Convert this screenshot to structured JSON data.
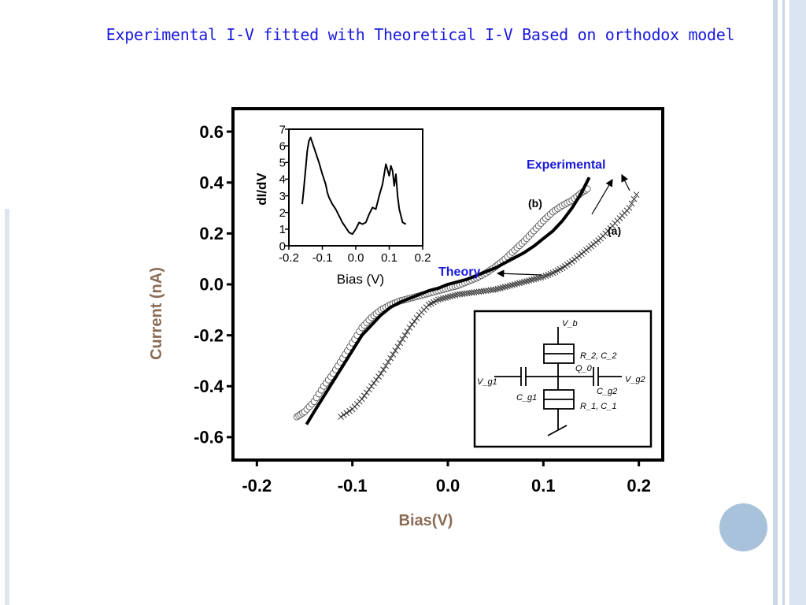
{
  "slide": {
    "title": "Experimental I-V fitted with Theoretical I-V Based on orthodox model",
    "colors": {
      "title": "#1a1adc",
      "axis_label": "#8b6c55",
      "annotation": "#1a1adc",
      "deco_circle": "#a9c2db",
      "deco_bars": "#c9d8e6"
    }
  },
  "chart_data": [
    {
      "type": "line",
      "title": "",
      "xlabel": "Bias(V)",
      "ylabel": "Current (nA)",
      "xlim": [
        -0.225,
        0.225
      ],
      "ylim": [
        -0.69,
        0.69
      ],
      "x_ticks": [
        "-0.2",
        "-0.1",
        "0.0",
        "0.1",
        "0.2"
      ],
      "y_ticks": [
        "0.6",
        "0.4",
        "0.2",
        "0.0",
        "-0.2",
        "-0.4",
        "-0.6"
      ],
      "grid": false,
      "series": [
        {
          "marker": "circle",
          "x": [
            -0.158,
            -0.15,
            -0.14,
            -0.13,
            -0.12,
            -0.11,
            -0.1,
            -0.09,
            -0.08,
            -0.07,
            -0.06,
            -0.05,
            -0.04,
            -0.03,
            -0.02,
            -0.01,
            0,
            0.01,
            0.02,
            0.03,
            0.04,
            0.05,
            0.06,
            0.07,
            0.08,
            0.09,
            0.1,
            0.11,
            0.12,
            0.13,
            0.14,
            0.148
          ],
          "y": [
            -0.52,
            -0.5,
            -0.46,
            -0.4,
            -0.35,
            -0.29,
            -0.23,
            -0.17,
            -0.13,
            -0.1,
            -0.08,
            -0.065,
            -0.055,
            -0.045,
            -0.035,
            -0.025,
            -0.015,
            -0.005,
            0.01,
            0.025,
            0.045,
            0.07,
            0.1,
            0.135,
            0.17,
            0.21,
            0.25,
            0.285,
            0.31,
            0.33,
            0.36,
            0.38
          ]
        },
        {
          "marker": "none",
          "x": [
            -0.148,
            -0.14,
            -0.13,
            -0.12,
            -0.11,
            -0.1,
            -0.09,
            -0.08,
            -0.07,
            -0.06,
            -0.05,
            -0.04,
            -0.03,
            -0.02,
            -0.01,
            0,
            0.01,
            0.02,
            0.03,
            0.04,
            0.05,
            0.06,
            0.07,
            0.08,
            0.09,
            0.1,
            0.11,
            0.12,
            0.13,
            0.14,
            0.148
          ],
          "y": [
            -0.55,
            -0.5,
            -0.44,
            -0.38,
            -0.32,
            -0.26,
            -0.2,
            -0.16,
            -0.12,
            -0.09,
            -0.07,
            -0.055,
            -0.04,
            -0.025,
            -0.015,
            0,
            0.01,
            0.02,
            0.035,
            0.05,
            0.065,
            0.085,
            0.105,
            0.125,
            0.15,
            0.18,
            0.21,
            0.25,
            0.3,
            0.36,
            0.42
          ]
        },
        {
          "marker": "cross",
          "x": [
            -0.112,
            -0.1,
            -0.09,
            -0.08,
            -0.07,
            -0.06,
            -0.05,
            -0.04,
            -0.03,
            -0.02,
            -0.01,
            0,
            0.01,
            0.02,
            0.03,
            0.04,
            0.05,
            0.06,
            0.07,
            0.08,
            0.09,
            0.1,
            0.11,
            0.12,
            0.13,
            0.14,
            0.15,
            0.16,
            0.17,
            0.18,
            0.19,
            0.2
          ],
          "y": [
            -0.52,
            -0.49,
            -0.45,
            -0.4,
            -0.35,
            -0.29,
            -0.23,
            -0.17,
            -0.12,
            -0.08,
            -0.06,
            -0.05,
            -0.04,
            -0.035,
            -0.03,
            -0.025,
            -0.02,
            -0.01,
            0,
            0.01,
            0.02,
            0.03,
            0.045,
            0.065,
            0.09,
            0.12,
            0.15,
            0.18,
            0.22,
            0.26,
            0.3,
            0.37
          ]
        }
      ],
      "annotations": [
        "Experimental",
        "(b)",
        "(a)",
        "Theory"
      ]
    },
    {
      "type": "line",
      "title": "",
      "xlabel": "Bias (V)",
      "ylabel": "dI/dV",
      "xlim": [
        -0.2,
        0.2
      ],
      "ylim": [
        0,
        7
      ],
      "x_ticks": [
        "-0.2",
        "-0.1",
        "0.0",
        "0.1",
        "0.2"
      ],
      "y_ticks": [
        "7",
        "6",
        "5",
        "4",
        "3",
        "2",
        "1",
        "0"
      ],
      "series": [
        {
          "x": [
            -0.16,
            -0.155,
            -0.15,
            -0.145,
            -0.14,
            -0.135,
            -0.13,
            -0.125,
            -0.12,
            -0.11,
            -0.1,
            -0.09,
            -0.085,
            -0.08,
            -0.07,
            -0.06,
            -0.05,
            -0.04,
            -0.03,
            -0.02,
            -0.01,
            0,
            0.01,
            0.02,
            0.03,
            0.04,
            0.05,
            0.06,
            0.07,
            0.08,
            0.09,
            0.1,
            0.105,
            0.11,
            0.115,
            0.12,
            0.125,
            0.13,
            0.14,
            0.15
          ],
          "y": [
            2.5,
            3.5,
            4.6,
            5.7,
            6.3,
            6.5,
            6.2,
            5.9,
            5.6,
            5.0,
            4.3,
            3.7,
            3.2,
            2.9,
            2.5,
            2.2,
            1.8,
            1.4,
            1.1,
            0.8,
            0.7,
            1.0,
            1.4,
            1.3,
            1.4,
            1.9,
            2.3,
            2.2,
            3.0,
            3.7,
            4.9,
            4.2,
            4.8,
            4.5,
            3.6,
            4.3,
            3.0,
            2.2,
            1.4,
            1.3
          ]
        }
      ]
    }
  ],
  "circuit": {
    "labels": [
      "V_b",
      "R_2, C_2",
      "Q_0",
      "V_g1",
      "C_g1",
      "C_g2",
      "V_g2",
      "R_1, C_1"
    ]
  }
}
